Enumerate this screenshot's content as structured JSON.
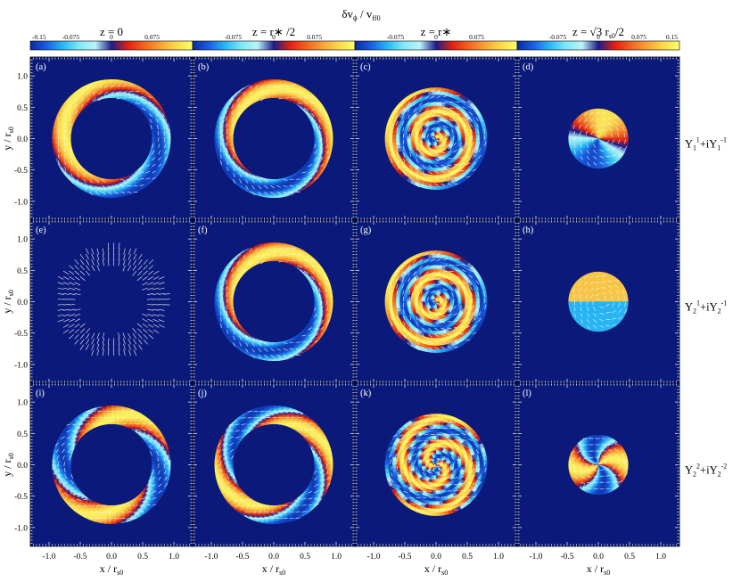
{
  "figure_title": "δv",
  "figure_title_sub1": "ϕ",
  "figure_title_mid": " / v",
  "figure_title_sub2": "ff0",
  "colors": {
    "background": "#0b1a7a",
    "white": "#ffffff",
    "arrow": "#f2f4ff",
    "scale": [
      "#0a2a9e",
      "#1a5fe0",
      "#29b6f4",
      "#7fe8f6",
      "#b9f3f7",
      "#1c1c8a",
      "#e02010",
      "#f06420",
      "#f7a23a",
      "#fbd94a",
      "#ffff6a"
    ]
  },
  "chart_data": {
    "type": "heatmap",
    "columns": [
      {
        "label": "z = 0",
        "value": "0",
        "disk_radius": 0.95
      },
      {
        "label": "z = r∗ /2",
        "value": "r∗/2",
        "disk_radius": 0.95
      },
      {
        "label": "z = r∗",
        "value": "r∗",
        "disk_radius": 0.82
      },
      {
        "label": "z = √3 r",
        "label_sub": "s0",
        "label_tail": "/2",
        "value": "√3 r_s0/2",
        "disk_radius": 0.48
      }
    ],
    "colorbar_ticks": [
      "-0.15",
      "-0.075",
      "0",
      "0.075",
      "0.15"
    ],
    "colorbar_range": [
      -0.15,
      0.15
    ],
    "rows": [
      {
        "label": "Y",
        "l": "1",
        "m_pos": "1",
        "m_neg": "-1",
        "mode": 1,
        "parity": "odd"
      },
      {
        "label": "Y",
        "l": "2",
        "m_pos": "1",
        "m_neg": "-1",
        "mode": 1,
        "parity": "even"
      },
      {
        "label": "Y",
        "l": "2",
        "m_pos": "2",
        "m_neg": "-2",
        "mode": 2,
        "parity": "even"
      }
    ],
    "panel_letters": [
      "(a)",
      "(b)",
      "(c)",
      "(d)",
      "(e)",
      "(f)",
      "(g)",
      "(h)",
      "(i)",
      "(j)",
      "(k)",
      "(l)"
    ],
    "inner_radius": [
      0.65,
      0.65,
      0,
      0
    ],
    "xlabel": "x / r",
    "xlabel_sub": "s0",
    "ylabel": "y / r",
    "ylabel_sub": "s0",
    "xticks": [
      "-1.0",
      "-0.5",
      "0.0",
      "0.5",
      "1.0"
    ],
    "yticks": [
      "1.0",
      "0.5",
      "0.0",
      "-0.5",
      "-1.0"
    ],
    "xlim": [
      -1.3,
      1.3
    ],
    "ylim": [
      -1.3,
      1.3
    ]
  }
}
